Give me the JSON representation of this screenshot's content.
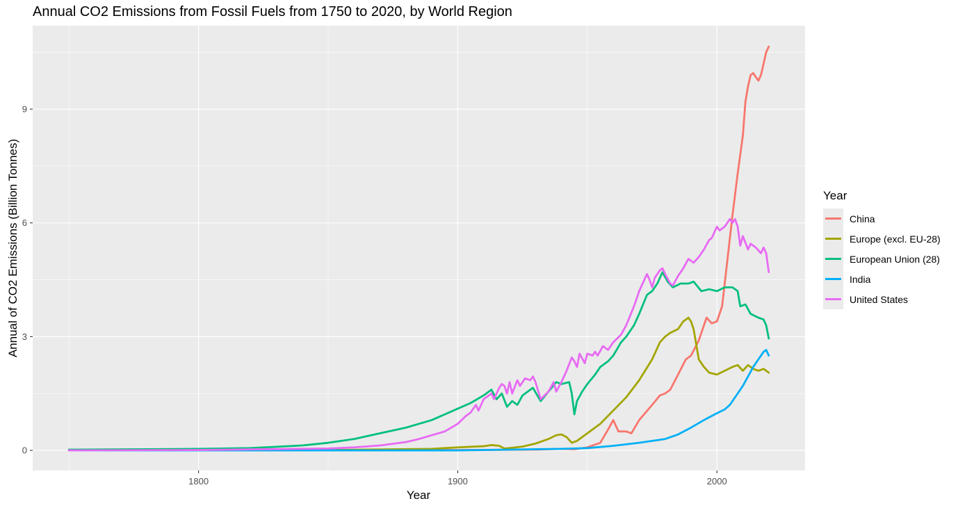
{
  "title": "Annual CO2 Emissions from Fossil Fuels from 1750 to 2020, by World Region",
  "legend_title": "Year",
  "chart_data": {
    "type": "line",
    "title": "Annual CO2 Emissions from Fossil Fuels from 1750 to 2020, by World Region",
    "xlabel": "Year",
    "ylabel": "Annual of CO2 Emissions (Billion Tonnes)",
    "xlim": [
      1736,
      2034
    ],
    "ylim": [
      -0.53,
      11.2
    ],
    "x_ticks": [
      1800,
      1900,
      2000
    ],
    "y_ticks": [
      0,
      3,
      6,
      9
    ],
    "x_tick_labels": [
      "1800",
      "1900",
      "2000"
    ],
    "y_tick_labels": [
      "0",
      "3",
      "6",
      "9"
    ],
    "grid": true,
    "legend_position": "right",
    "series": [
      {
        "name": "China",
        "color": "#F8766D",
        "points": [
          [
            1750,
            0
          ],
          [
            1900,
            0.01
          ],
          [
            1930,
            0.02
          ],
          [
            1940,
            0.04
          ],
          [
            1945,
            0.03
          ],
          [
            1950,
            0.08
          ],
          [
            1955,
            0.2
          ],
          [
            1958,
            0.55
          ],
          [
            1960,
            0.8
          ],
          [
            1962,
            0.5
          ],
          [
            1965,
            0.5
          ],
          [
            1967,
            0.45
          ],
          [
            1970,
            0.8
          ],
          [
            1975,
            1.2
          ],
          [
            1978,
            1.45
          ],
          [
            1980,
            1.5
          ],
          [
            1982,
            1.6
          ],
          [
            1985,
            2.0
          ],
          [
            1988,
            2.4
          ],
          [
            1990,
            2.5
          ],
          [
            1993,
            2.9
          ],
          [
            1996,
            3.5
          ],
          [
            1998,
            3.35
          ],
          [
            2000,
            3.4
          ],
          [
            2002,
            3.8
          ],
          [
            2004,
            5.0
          ],
          [
            2006,
            6.2
          ],
          [
            2008,
            7.3
          ],
          [
            2010,
            8.3
          ],
          [
            2011,
            9.2
          ],
          [
            2012,
            9.6
          ],
          [
            2013,
            9.9
          ],
          [
            2014,
            9.95
          ],
          [
            2015,
            9.85
          ],
          [
            2016,
            9.75
          ],
          [
            2017,
            9.9
          ],
          [
            2018,
            10.2
          ],
          [
            2019,
            10.5
          ],
          [
            2020,
            10.65
          ]
        ]
      },
      {
        "name": "Europe (excl. EU-28)",
        "color": "#A3A500",
        "points": [
          [
            1750,
            0
          ],
          [
            1850,
            0.01
          ],
          [
            1890,
            0.04
          ],
          [
            1900,
            0.08
          ],
          [
            1910,
            0.11
          ],
          [
            1913,
            0.14
          ],
          [
            1916,
            0.12
          ],
          [
            1918,
            0.05
          ],
          [
            1920,
            0.06
          ],
          [
            1925,
            0.1
          ],
          [
            1930,
            0.18
          ],
          [
            1935,
            0.3
          ],
          [
            1938,
            0.4
          ],
          [
            1940,
            0.42
          ],
          [
            1942,
            0.35
          ],
          [
            1944,
            0.2
          ],
          [
            1946,
            0.25
          ],
          [
            1950,
            0.45
          ],
          [
            1955,
            0.7
          ],
          [
            1960,
            1.05
          ],
          [
            1965,
            1.4
          ],
          [
            1970,
            1.85
          ],
          [
            1975,
            2.4
          ],
          [
            1978,
            2.85
          ],
          [
            1980,
            3.0
          ],
          [
            1982,
            3.1
          ],
          [
            1985,
            3.2
          ],
          [
            1987,
            3.4
          ],
          [
            1989,
            3.5
          ],
          [
            1990,
            3.4
          ],
          [
            1991,
            3.2
          ],
          [
            1992,
            2.8
          ],
          [
            1993,
            2.4
          ],
          [
            1995,
            2.2
          ],
          [
            1997,
            2.05
          ],
          [
            2000,
            2.0
          ],
          [
            2003,
            2.1
          ],
          [
            2006,
            2.2
          ],
          [
            2008,
            2.25
          ],
          [
            2010,
            2.1
          ],
          [
            2012,
            2.25
          ],
          [
            2014,
            2.15
          ],
          [
            2016,
            2.1
          ],
          [
            2018,
            2.15
          ],
          [
            2020,
            2.05
          ]
        ]
      },
      {
        "name": "European Union (28)",
        "color": "#00BF7D",
        "points": [
          [
            1750,
            0.02
          ],
          [
            1780,
            0.03
          ],
          [
            1800,
            0.04
          ],
          [
            1820,
            0.06
          ],
          [
            1840,
            0.13
          ],
          [
            1850,
            0.2
          ],
          [
            1860,
            0.3
          ],
          [
            1870,
            0.45
          ],
          [
            1880,
            0.6
          ],
          [
            1890,
            0.8
          ],
          [
            1900,
            1.1
          ],
          [
            1905,
            1.25
          ],
          [
            1910,
            1.45
          ],
          [
            1913,
            1.6
          ],
          [
            1915,
            1.35
          ],
          [
            1917,
            1.5
          ],
          [
            1919,
            1.15
          ],
          [
            1921,
            1.3
          ],
          [
            1923,
            1.2
          ],
          [
            1925,
            1.45
          ],
          [
            1927,
            1.55
          ],
          [
            1929,
            1.65
          ],
          [
            1932,
            1.3
          ],
          [
            1935,
            1.55
          ],
          [
            1938,
            1.8
          ],
          [
            1940,
            1.75
          ],
          [
            1943,
            1.8
          ],
          [
            1944,
            1.5
          ],
          [
            1945,
            0.95
          ],
          [
            1946,
            1.3
          ],
          [
            1948,
            1.55
          ],
          [
            1950,
            1.75
          ],
          [
            1953,
            2.0
          ],
          [
            1955,
            2.2
          ],
          [
            1958,
            2.35
          ],
          [
            1960,
            2.5
          ],
          [
            1963,
            2.85
          ],
          [
            1965,
            3.0
          ],
          [
            1968,
            3.3
          ],
          [
            1970,
            3.6
          ],
          [
            1973,
            4.1
          ],
          [
            1975,
            4.2
          ],
          [
            1977,
            4.4
          ],
          [
            1979,
            4.7
          ],
          [
            1981,
            4.45
          ],
          [
            1983,
            4.3
          ],
          [
            1986,
            4.4
          ],
          [
            1989,
            4.4
          ],
          [
            1991,
            4.45
          ],
          [
            1994,
            4.2
          ],
          [
            1997,
            4.25
          ],
          [
            2000,
            4.2
          ],
          [
            2003,
            4.3
          ],
          [
            2006,
            4.3
          ],
          [
            2008,
            4.2
          ],
          [
            2009,
            3.8
          ],
          [
            2011,
            3.85
          ],
          [
            2013,
            3.6
          ],
          [
            2016,
            3.5
          ],
          [
            2018,
            3.45
          ],
          [
            2019,
            3.3
          ],
          [
            2020,
            2.95
          ]
        ]
      },
      {
        "name": "India",
        "color": "#00B0F6",
        "points": [
          [
            1750,
            0
          ],
          [
            1900,
            0.0
          ],
          [
            1920,
            0.02
          ],
          [
            1940,
            0.04
          ],
          [
            1950,
            0.06
          ],
          [
            1960,
            0.12
          ],
          [
            1970,
            0.2
          ],
          [
            1980,
            0.3
          ],
          [
            1985,
            0.42
          ],
          [
            1990,
            0.6
          ],
          [
            1995,
            0.8
          ],
          [
            2000,
            0.98
          ],
          [
            2003,
            1.08
          ],
          [
            2005,
            1.2
          ],
          [
            2008,
            1.5
          ],
          [
            2010,
            1.7
          ],
          [
            2012,
            1.95
          ],
          [
            2014,
            2.2
          ],
          [
            2016,
            2.4
          ],
          [
            2018,
            2.6
          ],
          [
            2019,
            2.65
          ],
          [
            2020,
            2.5
          ]
        ]
      },
      {
        "name": "United States",
        "color": "#E76BF3",
        "points": [
          [
            1750,
            0
          ],
          [
            1800,
            0.01
          ],
          [
            1850,
            0.05
          ],
          [
            1860,
            0.08
          ],
          [
            1870,
            0.13
          ],
          [
            1880,
            0.22
          ],
          [
            1885,
            0.3
          ],
          [
            1890,
            0.4
          ],
          [
            1895,
            0.5
          ],
          [
            1900,
            0.7
          ],
          [
            1903,
            0.9
          ],
          [
            1905,
            1.0
          ],
          [
            1907,
            1.2
          ],
          [
            1908,
            1.05
          ],
          [
            1910,
            1.35
          ],
          [
            1913,
            1.5
          ],
          [
            1914,
            1.35
          ],
          [
            1916,
            1.65
          ],
          [
            1917,
            1.75
          ],
          [
            1918,
            1.7
          ],
          [
            1919,
            1.5
          ],
          [
            1920,
            1.8
          ],
          [
            1921,
            1.5
          ],
          [
            1923,
            1.85
          ],
          [
            1924,
            1.7
          ],
          [
            1926,
            1.9
          ],
          [
            1928,
            1.85
          ],
          [
            1929,
            1.95
          ],
          [
            1930,
            1.8
          ],
          [
            1932,
            1.35
          ],
          [
            1935,
            1.55
          ],
          [
            1937,
            1.8
          ],
          [
            1938,
            1.55
          ],
          [
            1940,
            1.8
          ],
          [
            1942,
            2.1
          ],
          [
            1944,
            2.45
          ],
          [
            1945,
            2.35
          ],
          [
            1946,
            2.2
          ],
          [
            1947,
            2.55
          ],
          [
            1949,
            2.3
          ],
          [
            1950,
            2.55
          ],
          [
            1952,
            2.5
          ],
          [
            1953,
            2.6
          ],
          [
            1954,
            2.5
          ],
          [
            1956,
            2.75
          ],
          [
            1958,
            2.65
          ],
          [
            1960,
            2.85
          ],
          [
            1963,
            3.05
          ],
          [
            1965,
            3.3
          ],
          [
            1968,
            3.8
          ],
          [
            1970,
            4.2
          ],
          [
            1973,
            4.65
          ],
          [
            1974,
            4.5
          ],
          [
            1975,
            4.3
          ],
          [
            1976,
            4.55
          ],
          [
            1978,
            4.75
          ],
          [
            1979,
            4.8
          ],
          [
            1980,
            4.65
          ],
          [
            1982,
            4.4
          ],
          [
            1983,
            4.35
          ],
          [
            1985,
            4.6
          ],
          [
            1987,
            4.8
          ],
          [
            1989,
            5.05
          ],
          [
            1991,
            4.95
          ],
          [
            1993,
            5.1
          ],
          [
            1995,
            5.3
          ],
          [
            1997,
            5.55
          ],
          [
            1998,
            5.6
          ],
          [
            2000,
            5.9
          ],
          [
            2001,
            5.8
          ],
          [
            2003,
            5.9
          ],
          [
            2005,
            6.1
          ],
          [
            2006,
            6.0
          ],
          [
            2007,
            6.1
          ],
          [
            2008,
            5.9
          ],
          [
            2009,
            5.4
          ],
          [
            2010,
            5.65
          ],
          [
            2012,
            5.3
          ],
          [
            2013,
            5.45
          ],
          [
            2015,
            5.35
          ],
          [
            2017,
            5.2
          ],
          [
            2018,
            5.35
          ],
          [
            2019,
            5.2
          ],
          [
            2020,
            4.7
          ]
        ]
      }
    ]
  }
}
